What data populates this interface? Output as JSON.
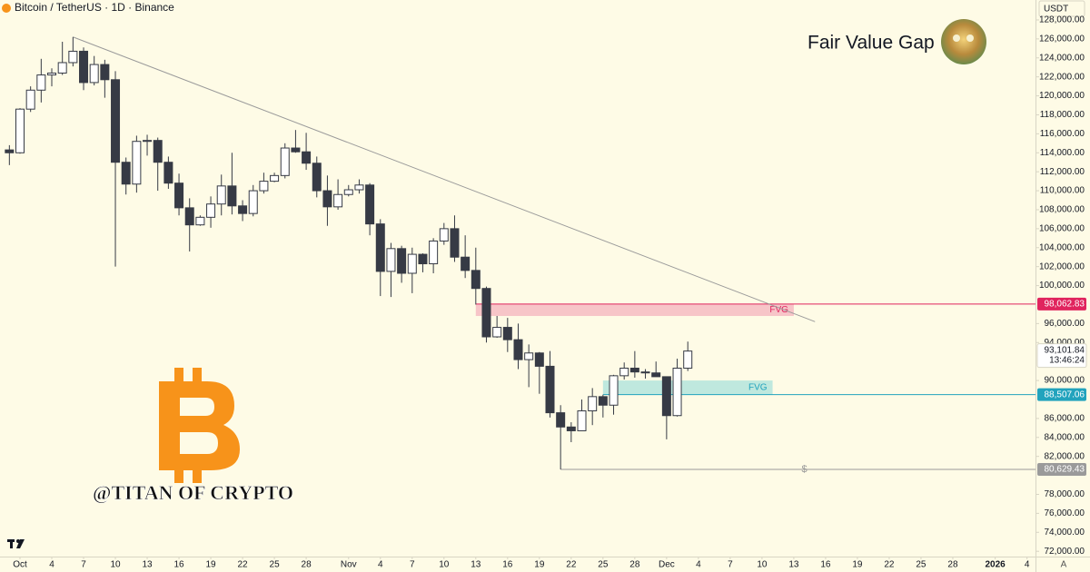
{
  "chart_data": {
    "type": "candlestick",
    "header": "Bitcoin / TetherUS · 1D · Binance",
    "title": "Fair Value Gap",
    "currency": "USDT",
    "watermark": "@TITAN OF CRYPTO",
    "scale_mode": "A",
    "countdown": "13:46:24",
    "up_color": "#ffffff",
    "down_color": "#363a45",
    "wick_color": "#363a45",
    "x": [
      "Sep 30",
      "Oct 1",
      "Oct 2",
      "Oct 3",
      "Oct 4",
      "Oct 5",
      "Oct 6",
      "Oct 7",
      "Oct 8",
      "Oct 9",
      "Oct 10",
      "Oct 11",
      "Oct 12",
      "Oct 13",
      "Oct 14",
      "Oct 15",
      "Oct 16",
      "Oct 17",
      "Oct 18",
      "Oct 19",
      "Oct 20",
      "Oct 21",
      "Oct 22",
      "Oct 23",
      "Oct 24",
      "Oct 25",
      "Oct 26",
      "Oct 27",
      "Oct 28",
      "Oct 29",
      "Oct 30",
      "Oct 31",
      "Nov 1",
      "Nov 2",
      "Nov 3",
      "Nov 4",
      "Nov 5",
      "Nov 6",
      "Nov 7",
      "Nov 8",
      "Nov 9",
      "Nov 10",
      "Nov 11",
      "Nov 12",
      "Nov 13",
      "Nov 14",
      "Nov 15",
      "Nov 16",
      "Nov 17",
      "Nov 18",
      "Nov 19",
      "Nov 20",
      "Nov 21",
      "Nov 22",
      "Nov 23",
      "Nov 24",
      "Nov 25",
      "Nov 26",
      "Nov 27",
      "Nov 28",
      "Nov 29",
      "Nov 30",
      "Dec 1",
      "Dec 2",
      "Dec 3"
    ],
    "open": [
      114300,
      114000,
      118600,
      120600,
      122200,
      122400,
      123500,
      124700,
      121400,
      123300,
      121700,
      113000,
      110700,
      115200,
      115300,
      113000,
      110800,
      108200,
      106400,
      107200,
      108600,
      110500,
      108400,
      107600,
      110000,
      111000,
      111600,
      114500,
      114100,
      112900,
      110000,
      108300,
      109600,
      110100,
      110600,
      106500,
      101500,
      103900,
      101300,
      103300,
      102300,
      104700,
      106000,
      103000,
      101600,
      99700,
      94600,
      95600,
      94300,
      92200,
      92900,
      91500,
      86600,
      85100,
      84700,
      86800,
      88300,
      87400,
      90500,
      91300,
      90900,
      90800,
      90400,
      86300,
      91300
    ],
    "high": [
      114800,
      118700,
      121000,
      123900,
      122900,
      125700,
      126200,
      125100,
      124200,
      123800,
      122600,
      113500,
      115800,
      115900,
      115600,
      113600,
      111800,
      109200,
      107400,
      109400,
      111700,
      114000,
      109000,
      110600,
      111900,
      111900,
      115000,
      116400,
      116100,
      113600,
      111600,
      111200,
      110600,
      111200,
      110800,
      107000,
      104500,
      104200,
      104000,
      103400,
      105000,
      106600,
      107400,
      105300,
      104000,
      99900,
      96800,
      96600,
      96000,
      93800,
      93000,
      93100,
      87400,
      85600,
      88000,
      89200,
      88500,
      90600,
      91900,
      93100,
      91200,
      92000,
      90400,
      92300,
      94100
    ],
    "low": [
      112700,
      113900,
      118300,
      119300,
      121000,
      122200,
      123100,
      120600,
      121100,
      119800,
      102000,
      109600,
      109800,
      113700,
      110000,
      110200,
      107400,
      103600,
      106300,
      106100,
      107400,
      107500,
      106800,
      107300,
      109700,
      110900,
      111300,
      114000,
      112200,
      109300,
      106300,
      108000,
      109400,
      109700,
      105300,
      98900,
      98800,
      100300,
      99200,
      101400,
      101300,
      104300,
      102500,
      100800,
      98000,
      94000,
      94500,
      93000,
      91200,
      89300,
      88600,
      86100,
      80629.43,
      83500,
      84700,
      85300,
      86100,
      86400,
      90100,
      90300,
      90200,
      90400,
      83800,
      86200,
      91000
    ],
    "close": [
      114000,
      118600,
      120600,
      122200,
      122400,
      123500,
      124700,
      121400,
      123300,
      121700,
      113000,
      110700,
      115200,
      115300,
      113000,
      110800,
      108200,
      106400,
      107200,
      108600,
      110500,
      108400,
      107600,
      110000,
      111000,
      111600,
      114500,
      114100,
      112900,
      110000,
      108300,
      109600,
      110100,
      110600,
      106500,
      101500,
      103900,
      101300,
      103300,
      102300,
      104700,
      106000,
      103000,
      101600,
      99700,
      94600,
      95600,
      94300,
      92200,
      92900,
      91500,
      86600,
      85100,
      84700,
      86800,
      88300,
      87400,
      90500,
      91300,
      90900,
      90800,
      90400,
      86300,
      91300,
      93101.84
    ],
    "ylim": [
      71540,
      130100
    ],
    "yticks": [
      {
        "value": 72000,
        "label": "72,000.00"
      },
      {
        "value": 74000,
        "label": "74,000.00"
      },
      {
        "value": 76000,
        "label": "76,000.00"
      },
      {
        "value": 78000,
        "label": "78,000.00"
      },
      {
        "value": 82000,
        "label": "82,000.00"
      },
      {
        "value": 84000,
        "label": "84,000.00"
      },
      {
        "value": 86000,
        "label": "86,000.00"
      },
      {
        "value": 90000,
        "label": "90,000.00"
      },
      {
        "value": 94000,
        "label": "94,000.00"
      },
      {
        "value": 96000,
        "label": "96,000.00"
      },
      {
        "value": 100000,
        "label": "100,000.00"
      },
      {
        "value": 102000,
        "label": "102,000.00"
      },
      {
        "value": 104000,
        "label": "104,000.00"
      },
      {
        "value": 106000,
        "label": "106,000.00"
      },
      {
        "value": 108000,
        "label": "108,000.00"
      },
      {
        "value": 110000,
        "label": "110,000.00"
      },
      {
        "value": 112000,
        "label": "112,000.00"
      },
      {
        "value": 114000,
        "label": "114,000.00"
      },
      {
        "value": 116000,
        "label": "116,000.00"
      },
      {
        "value": 118000,
        "label": "118,000.00"
      },
      {
        "value": 120000,
        "label": "120,000.00"
      },
      {
        "value": 122000,
        "label": "122,000.00"
      },
      {
        "value": 124000,
        "label": "124,000.00"
      },
      {
        "value": 126000,
        "label": "126,000.00"
      },
      {
        "value": 128000,
        "label": "128,000.00"
      }
    ],
    "xticks": [
      {
        "value": "Oct 1",
        "label": "Oct"
      },
      {
        "value": "Oct 4",
        "label": "4"
      },
      {
        "value": "Oct 7",
        "label": "7"
      },
      {
        "value": "Oct 10",
        "label": "10"
      },
      {
        "value": "Oct 13",
        "label": "13"
      },
      {
        "value": "Oct 16",
        "label": "16"
      },
      {
        "value": "Oct 19",
        "label": "19"
      },
      {
        "value": "Oct 22",
        "label": "22"
      },
      {
        "value": "Oct 25",
        "label": "25"
      },
      {
        "value": "Oct 28",
        "label": "28"
      },
      {
        "value": "Nov 1",
        "label": "Nov"
      },
      {
        "value": "Nov 4",
        "label": "4"
      },
      {
        "value": "Nov 7",
        "label": "7"
      },
      {
        "value": "Nov 10",
        "label": "10"
      },
      {
        "value": "Nov 13",
        "label": "13"
      },
      {
        "value": "Nov 16",
        "label": "16"
      },
      {
        "value": "Nov 19",
        "label": "19"
      },
      {
        "value": "Nov 22",
        "label": "22"
      },
      {
        "value": "Nov 25",
        "label": "25"
      },
      {
        "value": "Nov 28",
        "label": "28"
      },
      {
        "value": "Dec 1",
        "label": "Dec"
      },
      {
        "value": "Dec 4",
        "label": "4"
      },
      {
        "value": "Dec 7",
        "label": "7"
      },
      {
        "value": "Dec 10",
        "label": "10"
      },
      {
        "value": "Dec 13",
        "label": "13"
      },
      {
        "value": "Dec 16",
        "label": "16"
      },
      {
        "value": "Dec 19",
        "label": "19"
      },
      {
        "value": "Dec 22",
        "label": "22"
      },
      {
        "value": "Dec 25",
        "label": "25"
      },
      {
        "value": "Dec 28",
        "label": "28"
      },
      {
        "value": "Jan 1",
        "label": "2026"
      },
      {
        "value": "Jan 4",
        "label": "4"
      }
    ],
    "trendline": {
      "x": [
        "Oct 6",
        "Dec 15"
      ],
      "values": [
        126200,
        96200
      ],
      "color": "#9a9a9a"
    },
    "zones": [
      {
        "label": "FVG",
        "x": [
          "Nov 13",
          "Dec 13"
        ],
        "top": 98062.83,
        "bottom": 96800,
        "fill": "#f7c5c8",
        "color": "#e0245e"
      },
      {
        "label": "FVG",
        "x": [
          "Nov 25",
          "Dec 11"
        ],
        "top": 90000,
        "bottom": 88507.06,
        "fill": "#bfe8de",
        "color": "#22a3bd"
      }
    ],
    "levels": [
      {
        "value": 98062.83,
        "label": "98,062.83",
        "from": "Nov 13",
        "color": "#e0245e"
      },
      {
        "value": 88507.06,
        "label": "88,507.06",
        "from": "Nov 25",
        "color": "#22a3bd"
      },
      {
        "value": 80629.43,
        "label": "80,629.43",
        "from": "Nov 21",
        "color": "#9a9a9a",
        "marker": "$",
        "marker_at": "Dec 14"
      }
    ],
    "last_price": {
      "value": 93101.84,
      "label": "93,101.84"
    }
  }
}
